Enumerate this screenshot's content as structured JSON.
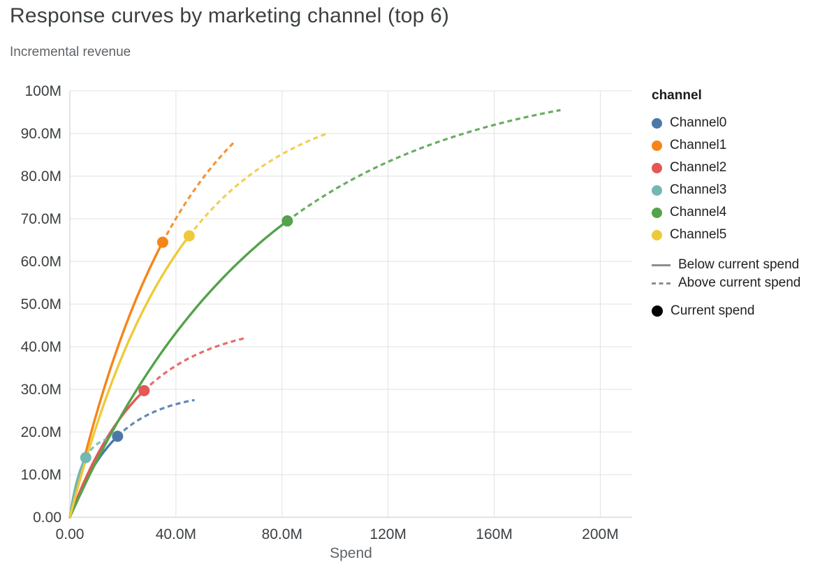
{
  "title": "Response curves by marketing channel (top 6)",
  "subtitle": "Incremental revenue",
  "chart_data": {
    "type": "line",
    "title": "Response curves by marketing channel (top 6)",
    "subtitle": "Incremental revenue",
    "xlabel": "Spend",
    "ylabel": "Incremental revenue",
    "units": "millions",
    "x_domain_millions": [
      0,
      212
    ],
    "y_domain_millions": [
      0,
      100
    ],
    "grid": true,
    "legend_position": "right",
    "x_ticks": [
      {
        "value": 0,
        "label": "0.00"
      },
      {
        "value": 40,
        "label": "40.0M"
      },
      {
        "value": 80,
        "label": "80.0M"
      },
      {
        "value": 120,
        "label": "120M"
      },
      {
        "value": 160,
        "label": "160M"
      },
      {
        "value": 200,
        "label": "200M"
      }
    ],
    "y_ticks": [
      {
        "value": 0,
        "label": "0.00"
      },
      {
        "value": 10,
        "label": "10.0M"
      },
      {
        "value": 20,
        "label": "20.0M"
      },
      {
        "value": 30,
        "label": "30.0M"
      },
      {
        "value": 40,
        "label": "40.0M"
      },
      {
        "value": 50,
        "label": "50.0M"
      },
      {
        "value": 60,
        "label": "60.0M"
      },
      {
        "value": 70,
        "label": "70.0M"
      },
      {
        "value": 80,
        "label": "80.0M"
      },
      {
        "value": 90,
        "label": "90.0M"
      },
      {
        "value": 100,
        "label": "100M"
      }
    ],
    "series": [
      {
        "name": "Channel0",
        "color": "#4c78a8",
        "current": {
          "spend": 18,
          "revenue": 19.0
        },
        "end": {
          "spend": 47,
          "revenue": 27.5
        }
      },
      {
        "name": "Channel1",
        "color": "#f58518",
        "current": {
          "spend": 35,
          "revenue": 64.5
        },
        "end": {
          "spend": 62,
          "revenue": 88.0
        }
      },
      {
        "name": "Channel2",
        "color": "#e45756",
        "current": {
          "spend": 28,
          "revenue": 29.7
        },
        "end": {
          "spend": 66,
          "revenue": 42.0
        }
      },
      {
        "name": "Channel3",
        "color": "#72b7b2",
        "current": {
          "spend": 6,
          "revenue": 14.0
        },
        "end": {
          "spend": 15,
          "revenue": 18.5
        }
      },
      {
        "name": "Channel4",
        "color": "#54a24b",
        "current": {
          "spend": 82,
          "revenue": 69.5
        },
        "end": {
          "spend": 185,
          "revenue": 95.5
        }
      },
      {
        "name": "Channel5",
        "color": "#eeca3b",
        "current": {
          "spend": 45,
          "revenue": 66.0
        },
        "end": {
          "spend": 97,
          "revenue": 90.0
        }
      }
    ],
    "legend": {
      "title": "channel",
      "style_items": [
        {
          "type": "solid-line",
          "label": "Below current spend"
        },
        {
          "type": "dashed-line",
          "label": "Above current spend"
        },
        {
          "type": "dot",
          "label": "Current spend"
        }
      ]
    },
    "colors": {
      "grid": "#e2e2e2",
      "axis": "#c8c8c8",
      "tick_label": "#3c4043",
      "axis_title": "#5f6368",
      "legend_line": "#8a8f96",
      "current_spend_dot_legend": "#000000"
    }
  }
}
